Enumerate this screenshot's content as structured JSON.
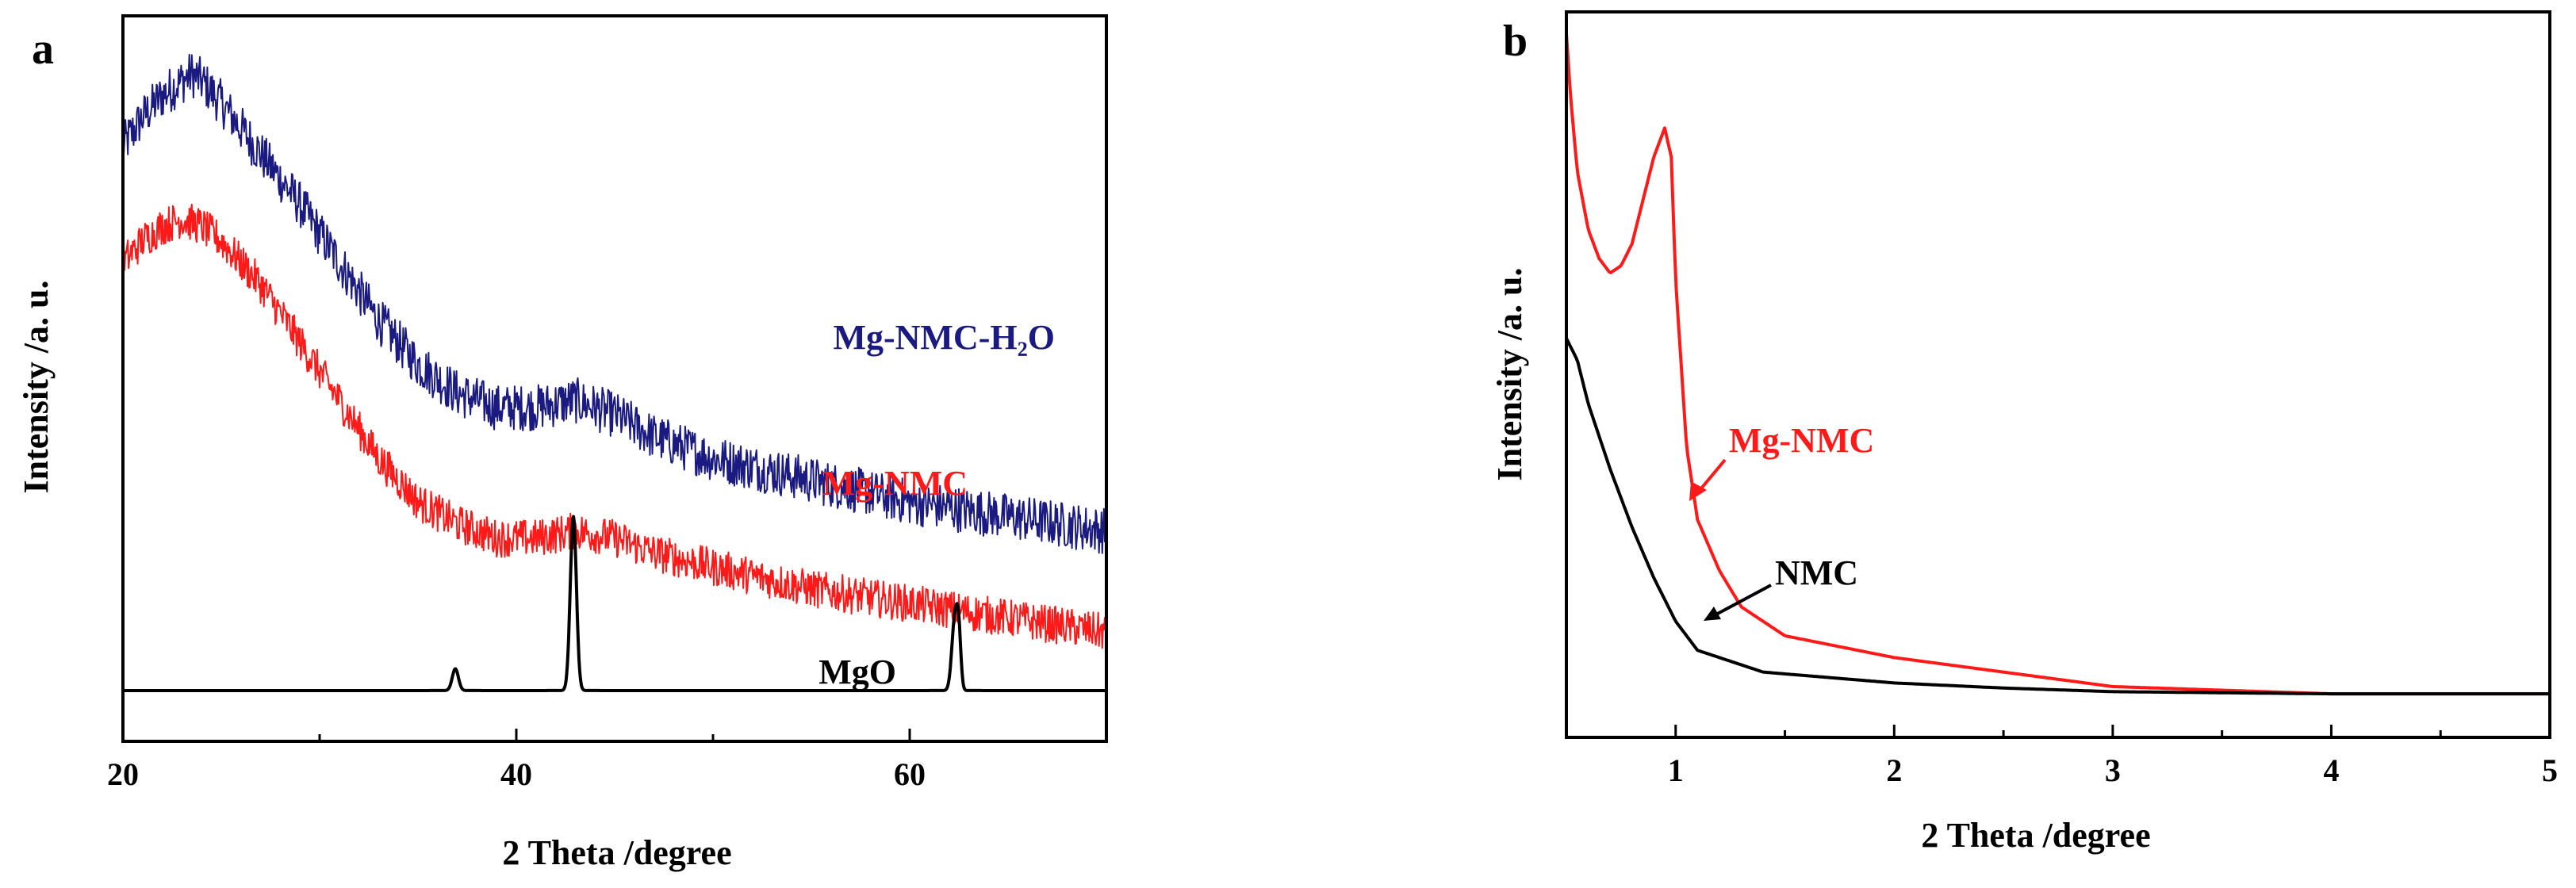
{
  "colors": {
    "blue": "#1a1a80",
    "red": "#ff1a1a",
    "black": "#000000"
  },
  "chart_data": [
    {
      "panel": "a",
      "type": "line",
      "xlabel": "2 Theta /degree",
      "ylabel": "Intensity /a. u.",
      "xlim": [
        20,
        70
      ],
      "ylim": [
        0,
        100
      ],
      "xticks": [
        20,
        40,
        60
      ],
      "xticks_minor": [
        30,
        50,
        70
      ],
      "series": [
        {
          "name": "Mg-NMC-H2O",
          "label": "Mg-NMC-H₂O",
          "color": "#1a1a80",
          "noise": 3.2,
          "x": [
            20,
            21,
            22,
            23,
            23.5,
            24,
            25,
            27,
            29,
            31,
            33,
            35,
            37,
            39,
            41,
            43,
            45,
            47,
            50,
            55,
            60,
            65,
            70
          ],
          "y": [
            82,
            86,
            89,
            91,
            92,
            91,
            88,
            81,
            74,
            66,
            58,
            52,
            48,
            46,
            46,
            47,
            45,
            42,
            39,
            36,
            33,
            31,
            29
          ]
        },
        {
          "name": "Mg-NMC",
          "label": "Mg-NMC",
          "color": "#ff1a1a",
          "noise": 2.6,
          "x": [
            20,
            21,
            22,
            23,
            24,
            25,
            27,
            29,
            31,
            33,
            35,
            37,
            39,
            41,
            43,
            45,
            47,
            50,
            55,
            60,
            65,
            70
          ],
          "y": [
            66,
            69,
            71,
            72,
            71,
            69,
            63,
            55,
            47,
            39,
            33,
            30,
            28,
            28,
            29,
            28,
            26,
            24,
            21,
            19,
            17,
            15
          ]
        },
        {
          "name": "MgO",
          "label": "MgO",
          "color": "#000000",
          "noise": 0,
          "baseline": 7,
          "peaks": [
            {
              "x": 36.9,
              "height": 3,
              "width": 0.22
            },
            {
              "x": 42.9,
              "height": 24,
              "width": 0.22
            },
            {
              "x": 62.3,
              "height": 10,
              "width": 0.22
            },
            {
              "x": 62.5,
              "height": 6,
              "width": 0.15
            }
          ]
        }
      ]
    },
    {
      "panel": "b",
      "type": "line",
      "xlabel": "2 Theta /degree",
      "ylabel": "Intensity /a. u.",
      "xlim": [
        0.5,
        5
      ],
      "ylim": [
        0,
        100
      ],
      "xticks": [
        1,
        2,
        3,
        4,
        5
      ],
      "series": [
        {
          "name": "Mg-NMC",
          "label": "Mg-NMC",
          "color": "#ff1a1a",
          "x": [
            0.5,
            0.52,
            0.55,
            0.6,
            0.65,
            0.7,
            0.75,
            0.8,
            0.85,
            0.9,
            0.95,
            0.98,
            1.0,
            1.05,
            1.1,
            1.2,
            1.3,
            1.5,
            2.0,
            2.5,
            3.0,
            4.0,
            5.0
          ],
          "y": [
            97,
            88,
            78,
            70,
            66,
            64,
            65,
            68,
            74,
            80,
            84,
            80,
            63,
            40,
            30,
            23,
            18,
            14,
            11,
            9,
            7,
            6,
            6
          ]
        },
        {
          "name": "NMC",
          "label": "NMC",
          "color": "#000000",
          "x": [
            0.5,
            0.55,
            0.6,
            0.7,
            0.8,
            0.9,
            1.0,
            1.1,
            1.2,
            1.4,
            1.6,
            2.0,
            2.5,
            3.0,
            4.0,
            5.0
          ],
          "y": [
            55,
            52,
            46,
            37,
            29,
            22,
            16,
            12,
            11,
            9,
            8.5,
            7.5,
            6.8,
            6.3,
            6,
            6
          ]
        }
      ]
    }
  ]
}
